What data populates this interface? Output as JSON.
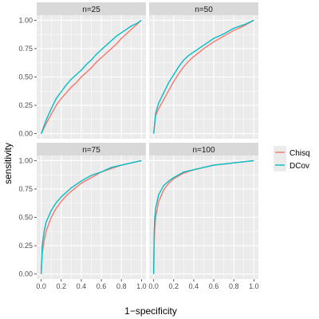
{
  "chart_data": {
    "type": "line",
    "xlabel": "1−specificity",
    "ylabel": "sensitivity",
    "xlim": [
      0,
      1
    ],
    "ylim": [
      0,
      1
    ],
    "x_ticks": [
      "0.0",
      "0.2",
      "0.4",
      "0.6",
      "0.8",
      "1.0"
    ],
    "y_ticks": [
      "0.00",
      "0.25",
      "0.50",
      "0.75",
      "1.00"
    ],
    "legend_position": "right",
    "grid": true,
    "colors": {
      "Chisq": "#F8766D",
      "DCov": "#00BFC4",
      "panel_bg": "#EBEBEB",
      "strip_bg": "#D9D9D9",
      "grid": "#FFFFFF"
    },
    "legend": [
      {
        "name": "Chisq"
      },
      {
        "name": "DCov"
      }
    ],
    "panels": [
      {
        "label": "n=25",
        "series": [
          {
            "name": "Chisq",
            "x": [
              0,
              0.05,
              0.1,
              0.15,
              0.2,
              0.25,
              0.3,
              0.35,
              0.4,
              0.45,
              0.5,
              0.55,
              0.6,
              0.65,
              0.7,
              0.75,
              0.8,
              0.85,
              0.9,
              0.95,
              1.0
            ],
            "y": [
              0,
              0.09,
              0.17,
              0.25,
              0.31,
              0.36,
              0.41,
              0.45,
              0.5,
              0.54,
              0.58,
              0.63,
              0.67,
              0.71,
              0.75,
              0.79,
              0.84,
              0.88,
              0.92,
              0.96,
              1.0
            ]
          },
          {
            "name": "DCov",
            "x": [
              0,
              0.05,
              0.1,
              0.15,
              0.2,
              0.25,
              0.3,
              0.35,
              0.4,
              0.45,
              0.5,
              0.55,
              0.6,
              0.65,
              0.7,
              0.75,
              0.8,
              0.85,
              0.9,
              0.95,
              1.0
            ],
            "y": [
              0,
              0.12,
              0.22,
              0.31,
              0.37,
              0.43,
              0.48,
              0.52,
              0.56,
              0.61,
              0.65,
              0.7,
              0.74,
              0.78,
              0.82,
              0.86,
              0.89,
              0.92,
              0.95,
              0.97,
              1.0
            ]
          }
        ]
      },
      {
        "label": "n=50",
        "series": [
          {
            "name": "Chisq",
            "x": [
              0,
              0.02,
              0.05,
              0.1,
              0.15,
              0.2,
              0.25,
              0.3,
              0.35,
              0.4,
              0.5,
              0.6,
              0.7,
              0.8,
              0.9,
              1.0
            ],
            "y": [
              0,
              0.16,
              0.22,
              0.3,
              0.38,
              0.46,
              0.53,
              0.59,
              0.64,
              0.68,
              0.75,
              0.81,
              0.86,
              0.91,
              0.95,
              1.0
            ]
          },
          {
            "name": "DCov",
            "x": [
              0,
              0.02,
              0.05,
              0.1,
              0.15,
              0.2,
              0.25,
              0.3,
              0.35,
              0.4,
              0.5,
              0.6,
              0.7,
              0.8,
              0.9,
              1.0
            ],
            "y": [
              0,
              0.18,
              0.27,
              0.36,
              0.45,
              0.52,
              0.59,
              0.65,
              0.69,
              0.72,
              0.78,
              0.84,
              0.88,
              0.93,
              0.96,
              1.0
            ]
          }
        ]
      },
      {
        "label": "n=75",
        "series": [
          {
            "name": "Chisq",
            "x": [
              0,
              0.01,
              0.03,
              0.05,
              0.1,
              0.15,
              0.2,
              0.25,
              0.3,
              0.4,
              0.5,
              0.6,
              0.7,
              0.8,
              0.9,
              1.0
            ],
            "y": [
              0,
              0.18,
              0.3,
              0.38,
              0.5,
              0.58,
              0.64,
              0.69,
              0.73,
              0.8,
              0.85,
              0.9,
              0.93,
              0.96,
              0.98,
              1.0
            ]
          },
          {
            "name": "DCov",
            "x": [
              0,
              0.01,
              0.03,
              0.05,
              0.1,
              0.15,
              0.2,
              0.25,
              0.3,
              0.4,
              0.5,
              0.6,
              0.7,
              0.8,
              0.9,
              1.0
            ],
            "y": [
              0,
              0.25,
              0.38,
              0.46,
              0.56,
              0.63,
              0.68,
              0.72,
              0.76,
              0.82,
              0.87,
              0.9,
              0.94,
              0.96,
              0.98,
              1.0
            ]
          }
        ]
      },
      {
        "label": "n=100",
        "series": [
          {
            "name": "Chisq",
            "x": [
              0,
              0.005,
              0.01,
              0.02,
              0.05,
              0.1,
              0.15,
              0.2,
              0.3,
              0.4,
              0.5,
              0.6,
              0.7,
              0.8,
              0.9,
              1.0
            ],
            "y": [
              0,
              0.25,
              0.38,
              0.5,
              0.64,
              0.74,
              0.8,
              0.84,
              0.89,
              0.92,
              0.94,
              0.96,
              0.97,
              0.98,
              0.99,
              1.0
            ]
          },
          {
            "name": "DCov",
            "x": [
              0,
              0.005,
              0.01,
              0.02,
              0.05,
              0.1,
              0.15,
              0.2,
              0.3,
              0.4,
              0.5,
              0.6,
              0.7,
              0.8,
              0.9,
              1.0
            ],
            "y": [
              0,
              0.35,
              0.48,
              0.58,
              0.7,
              0.78,
              0.82,
              0.85,
              0.9,
              0.92,
              0.94,
              0.96,
              0.97,
              0.98,
              0.99,
              1.0
            ]
          }
        ]
      }
    ]
  }
}
